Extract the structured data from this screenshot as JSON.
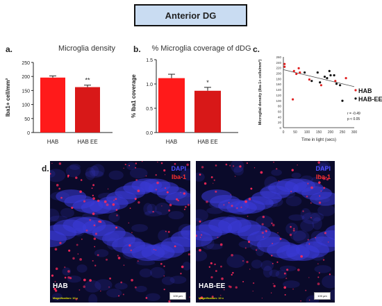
{
  "header": {
    "title": "Anterior DG"
  },
  "panels": {
    "a": {
      "letter": "a.",
      "title": "Microglia density"
    },
    "b": {
      "letter": "b.",
      "title": "% Microglia coverage of dDG"
    },
    "c": {
      "letter": "c."
    },
    "d": {
      "letter": "d."
    }
  },
  "chart_data": [
    {
      "type": "bar",
      "title": "Microglia density",
      "categories": [
        "HAB",
        "HAB EE"
      ],
      "values": [
        196,
        162
      ],
      "errors": [
        6,
        7
      ],
      "annotations": [
        "",
        "**"
      ],
      "ylabel": "Iba1+ cell/mm²",
      "ylim": [
        0,
        250
      ],
      "yticks": [
        "0",
        "50",
        "100",
        "150",
        "200",
        "250"
      ],
      "colors": [
        "#ff1a1a",
        "#d81818"
      ]
    },
    {
      "type": "bar",
      "title": "% Microglia coverage of dDG",
      "categories": [
        "HAB",
        "HAB EE"
      ],
      "values": [
        1.12,
        0.86
      ],
      "errors": [
        0.08,
        0.07
      ],
      "annotations": [
        "",
        "*"
      ],
      "ylabel": "% Iba1 coverage",
      "ylim": [
        0,
        1.5
      ],
      "yticks": [
        "0.0",
        "0.5",
        "1.0",
        "1.5"
      ],
      "colors": [
        "#ff1a1a",
        "#d81818"
      ]
    },
    {
      "type": "scatter",
      "xlabel": "Time in light (secs)",
      "ylabel": "Microglial density (Iba-1+ cells/mm²)",
      "xlim": [
        0,
        300
      ],
      "ylim": [
        0,
        250
      ],
      "xticks": [
        "0",
        "50",
        "100",
        "150",
        "200",
        "250",
        "300"
      ],
      "yticks": [
        "0",
        "20",
        "40",
        "60",
        "80",
        "100",
        "120",
        "140",
        "160",
        "180",
        "200",
        "220",
        "240",
        "260"
      ],
      "series": [
        {
          "name": "HAB",
          "color": "#e02020",
          "points": [
            [
              5,
              225
            ],
            [
              5,
              215
            ],
            [
              40,
              100
            ],
            [
              45,
              200
            ],
            [
              55,
              190
            ],
            [
              65,
              210
            ],
            [
              70,
              195
            ],
            [
              110,
              170
            ],
            [
              160,
              150
            ],
            [
              220,
              165
            ],
            [
              265,
              175
            ]
          ]
        },
        {
          "name": "HAB-EE",
          "color": "#111111",
          "points": [
            [
              90,
              195
            ],
            [
              120,
              165
            ],
            [
              145,
              195
            ],
            [
              155,
              160
            ],
            [
              175,
              180
            ],
            [
              185,
              175
            ],
            [
              195,
              200
            ],
            [
              200,
              185
            ],
            [
              215,
              185
            ],
            [
              225,
              155
            ],
            [
              240,
              150
            ],
            [
              250,
              95
            ]
          ]
        }
      ],
      "trendline": [
        [
          0,
          205
        ],
        [
          300,
          145
        ]
      ],
      "stats": [
        "r = -0.49",
        "p < 0.05"
      ]
    }
  ],
  "micrographs": [
    {
      "label": "HAB",
      "legend_dapi": "DAPI",
      "legend_iba": "Iba-1",
      "magnification": "Magnification: 10 x",
      "scalebar": "100 μm"
    },
    {
      "label": "HAB-EE",
      "legend_dapi": "DAPI",
      "legend_iba": "Iba-1",
      "magnification": "Magnification: 10 x",
      "scalebar": "100 μm"
    }
  ]
}
